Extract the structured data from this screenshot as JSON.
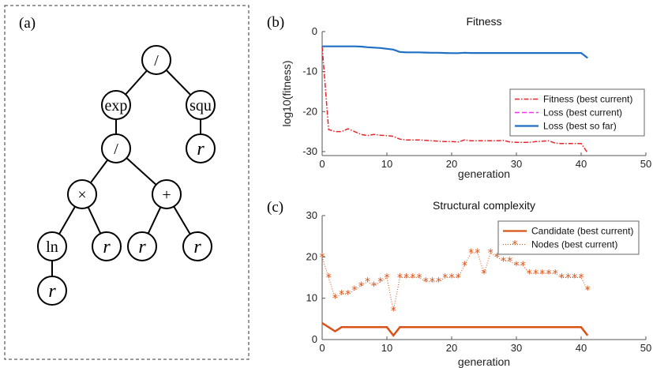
{
  "panel_labels": {
    "a": "(a)",
    "b": "(b)",
    "c": "(c)"
  },
  "tree": {
    "nodes": [
      {
        "id": "root",
        "label": "/",
        "italic": false
      },
      {
        "id": "exp",
        "label": "exp",
        "italic": false
      },
      {
        "id": "squ",
        "label": "squ",
        "italic": false
      },
      {
        "id": "div2",
        "label": "/",
        "italic": false
      },
      {
        "id": "r-squ",
        "label": "r",
        "italic": true
      },
      {
        "id": "times",
        "label": "×",
        "italic": false
      },
      {
        "id": "plus",
        "label": "+",
        "italic": false
      },
      {
        "id": "ln",
        "label": "ln",
        "italic": false
      },
      {
        "id": "r-times",
        "label": "r",
        "italic": true
      },
      {
        "id": "r-plus-left",
        "label": "r",
        "italic": true
      },
      {
        "id": "r-plus-right",
        "label": "r",
        "italic": true
      },
      {
        "id": "r-ln",
        "label": "r",
        "italic": true
      }
    ],
    "edges": [
      [
        "root",
        "exp"
      ],
      [
        "root",
        "squ"
      ],
      [
        "exp",
        "div2"
      ],
      [
        "squ",
        "r-squ"
      ],
      [
        "div2",
        "times"
      ],
      [
        "div2",
        "plus"
      ],
      [
        "times",
        "ln"
      ],
      [
        "times",
        "r-times"
      ],
      [
        "plus",
        "r-plus-left"
      ],
      [
        "plus",
        "r-plus-right"
      ],
      [
        "ln",
        "r-ln"
      ]
    ]
  },
  "chart_data": [
    {
      "type": "line",
      "title": "Fitness",
      "xlabel": "generation",
      "ylabel": "log10(fitness)",
      "xlim": [
        0,
        50
      ],
      "ylim": [
        -31,
        0
      ],
      "xticks": [
        0,
        10,
        20,
        30,
        40,
        50
      ],
      "yticks": [
        0,
        -10,
        -20,
        -30
      ],
      "legend_position": "right",
      "x": [
        0,
        1,
        2,
        3,
        4,
        5,
        6,
        7,
        8,
        9,
        10,
        11,
        12,
        13,
        14,
        15,
        16,
        17,
        18,
        19,
        20,
        21,
        22,
        23,
        24,
        25,
        26,
        27,
        28,
        29,
        30,
        31,
        32,
        33,
        34,
        35,
        36,
        37,
        38,
        39,
        40,
        41
      ],
      "series": [
        {
          "name": "Fitness (best current)",
          "color": "#e8242b",
          "style": "dashdot",
          "values": [
            -3.8,
            -24.5,
            -25,
            -25,
            -24.3,
            -25,
            -25.7,
            -26,
            -25.7,
            -25.9,
            -26,
            -26.2,
            -26.9,
            -27.1,
            -27.1,
            -27.1,
            -27.2,
            -27.3,
            -27.4,
            -27.5,
            -27.5,
            -27.6,
            -27.1,
            -27.3,
            -27.3,
            -27.3,
            -27.3,
            -27.3,
            -27.2,
            -27.6,
            -27.7,
            -27.7,
            -27.7,
            -27.5,
            -27.4,
            -27.3,
            -27.9,
            -28,
            -28,
            -28,
            -28,
            -30.3
          ]
        },
        {
          "name": "Loss (best current)",
          "color": "#ff2bff",
          "style": "dashed",
          "values": [
            -3.7,
            -3.7,
            -3.7,
            -3.7,
            -3.7,
            -3.7,
            -3.75,
            -3.9,
            -4,
            -4.1,
            -4.3,
            -4.5,
            -5.1,
            -5.2,
            -5.2,
            -5.2,
            -5.25,
            -5.3,
            -5.3,
            -5.35,
            -5.4,
            -5.4,
            -5.3,
            -5.35,
            -5.35,
            -5.35,
            -5.35,
            -5.35,
            -5.35,
            -5.35,
            -5.35,
            -5.35,
            -5.35,
            -5.35,
            -5.35,
            -5.35,
            -5.35,
            -5.35,
            -5.35,
            -5.35,
            -5.35,
            -6.6
          ]
        },
        {
          "name": "Loss (best so far)",
          "color": "#1f6fc2",
          "style": "solid",
          "values": [
            -3.7,
            -3.7,
            -3.7,
            -3.7,
            -3.7,
            -3.7,
            -3.75,
            -3.9,
            -4,
            -4.1,
            -4.3,
            -4.5,
            -5.1,
            -5.2,
            -5.2,
            -5.2,
            -5.25,
            -5.3,
            -5.3,
            -5.35,
            -5.4,
            -5.4,
            -5.3,
            -5.35,
            -5.35,
            -5.35,
            -5.35,
            -5.35,
            -5.35,
            -5.35,
            -5.35,
            -5.35,
            -5.35,
            -5.35,
            -5.35,
            -5.35,
            -5.35,
            -5.35,
            -5.35,
            -5.35,
            -5.35,
            -6.6
          ]
        }
      ]
    },
    {
      "type": "line",
      "title": "Structural complexity",
      "xlabel": "generation",
      "ylabel": "",
      "xlim": [
        0,
        50
      ],
      "ylim": [
        0,
        30
      ],
      "xticks": [
        0,
        10,
        20,
        30,
        40,
        50
      ],
      "yticks": [
        0,
        10,
        20,
        30
      ],
      "legend_position": "top-right",
      "x": [
        0,
        1,
        2,
        3,
        4,
        5,
        6,
        7,
        8,
        9,
        10,
        11,
        12,
        13,
        14,
        15,
        16,
        17,
        18,
        19,
        20,
        21,
        22,
        23,
        24,
        25,
        26,
        27,
        28,
        29,
        30,
        31,
        32,
        33,
        34,
        35,
        36,
        37,
        38,
        39,
        40,
        41
      ],
      "series": [
        {
          "name": "Candidate (best current)",
          "color": "#d95319",
          "style": "solid",
          "values": [
            4,
            3,
            2,
            3,
            3,
            3,
            3,
            3,
            3,
            3,
            3,
            1,
            3,
            3,
            3,
            3,
            3,
            3,
            3,
            3,
            3,
            3,
            3,
            3,
            3,
            3,
            3,
            3,
            3,
            3,
            3,
            3,
            3,
            3,
            3,
            3,
            3,
            3,
            3,
            3,
            3,
            1
          ]
        },
        {
          "name": "Nodes (best current)",
          "color": "#d95319",
          "style": "dotted-star",
          "values": [
            20,
            15,
            10,
            11,
            11,
            12,
            13,
            14,
            13,
            14,
            15,
            7,
            15,
            15,
            15,
            15,
            14,
            14,
            14,
            15,
            15,
            15,
            18,
            21,
            21,
            16,
            21,
            20,
            19,
            19,
            18,
            18,
            16,
            16,
            16,
            16,
            16,
            15,
            15,
            15,
            15,
            12
          ]
        }
      ]
    }
  ]
}
